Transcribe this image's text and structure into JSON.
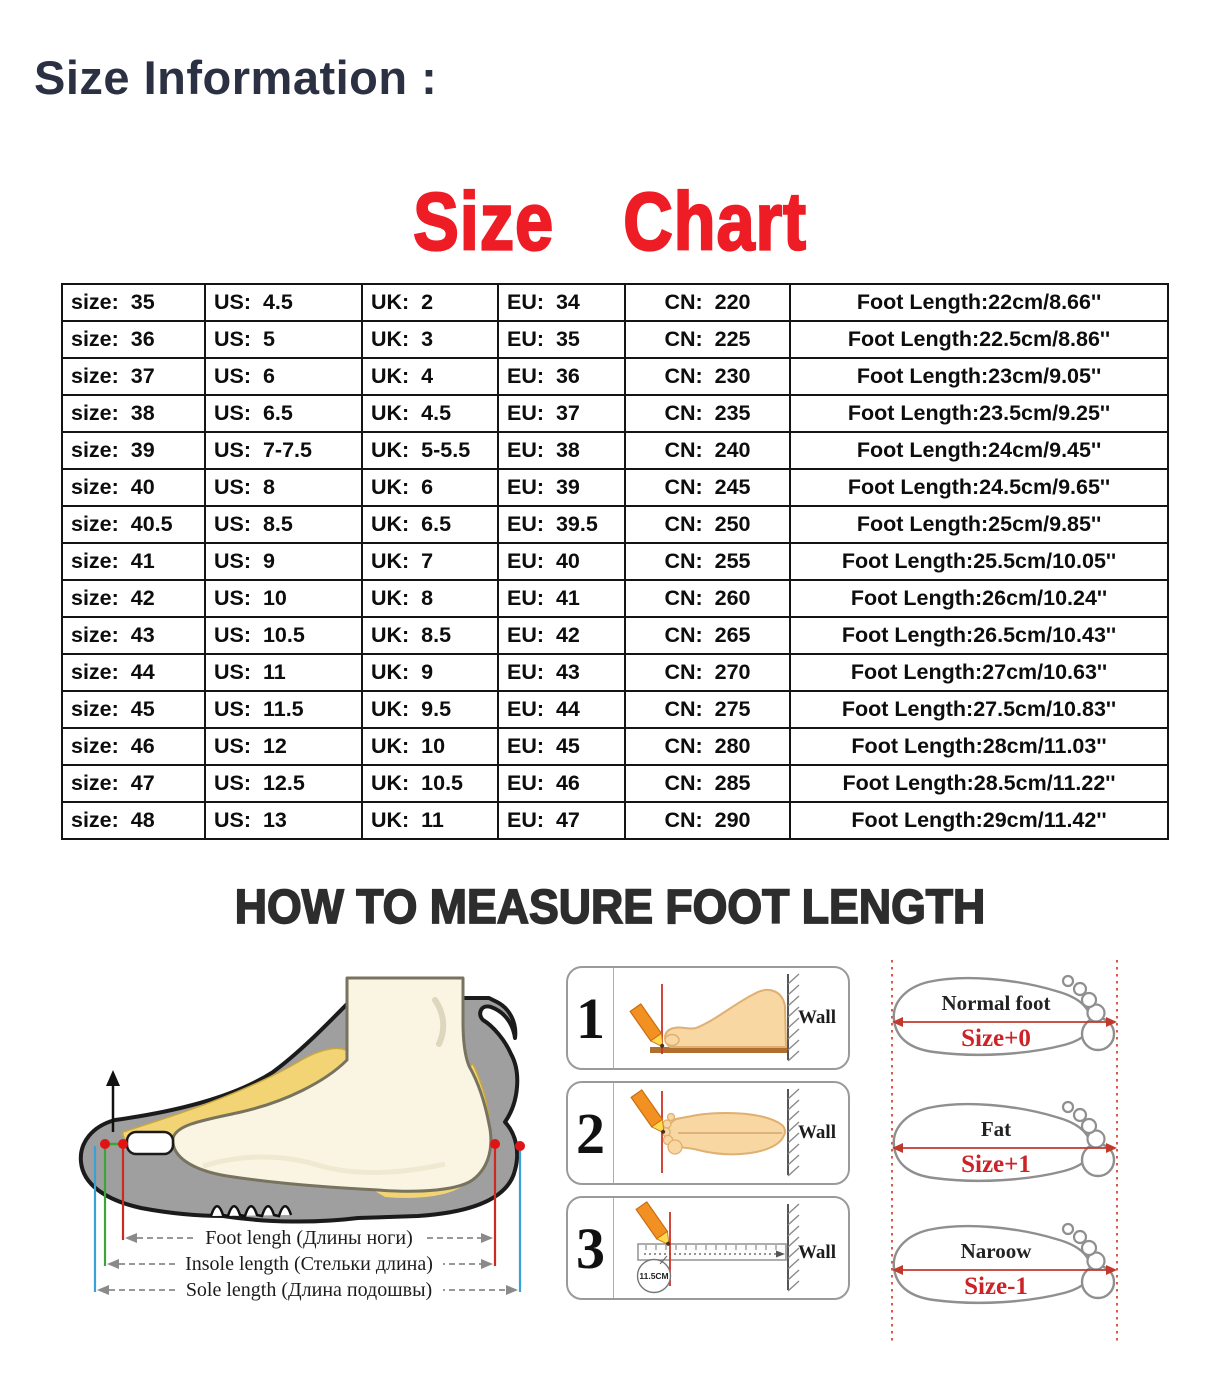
{
  "header": {
    "title": "Size Information :"
  },
  "size_chart": {
    "title": "Size Chart",
    "columns": [
      "size",
      "US",
      "UK",
      "EU",
      "CN",
      "Foot Length"
    ],
    "rows": [
      [
        "size:  35",
        "US:  4.5",
        "UK:  2",
        "EU:  34",
        "CN:  220",
        "Foot Length:22cm/8.66''"
      ],
      [
        "size:  36",
        "US:  5",
        "UK:  3",
        "EU:  35",
        "CN:  225",
        "Foot Length:22.5cm/8.86''"
      ],
      [
        "size:  37",
        "US:  6",
        "UK:  4",
        "EU:  36",
        "CN:  230",
        "Foot Length:23cm/9.05''"
      ],
      [
        "size:  38",
        "US:  6.5",
        "UK:  4.5",
        "EU:  37",
        "CN:  235",
        "Foot Length:23.5cm/9.25''"
      ],
      [
        "size:  39",
        "US:  7-7.5",
        "UK:  5-5.5",
        "EU:  38",
        "CN:  240",
        "Foot Length:24cm/9.45''"
      ],
      [
        "size:  40",
        "US:  8",
        "UK:  6",
        "EU:  39",
        "CN:  245",
        "Foot Length:24.5cm/9.65''"
      ],
      [
        "size:  40.5",
        "US:  8.5",
        "UK:  6.5",
        "EU:  39.5",
        "CN:  250",
        "Foot Length:25cm/9.85''"
      ],
      [
        "size:  41",
        "US:  9",
        "UK:  7",
        "EU:  40",
        "CN:  255",
        "Foot Length:25.5cm/10.05''"
      ],
      [
        "size:  42",
        "US:  10",
        "UK:  8",
        "EU:  41",
        "CN:  260",
        "Foot Length:26cm/10.24''"
      ],
      [
        "size:  43",
        "US:  10.5",
        "UK:  8.5",
        "EU:  42",
        "CN:  265",
        "Foot Length:26.5cm/10.43''"
      ],
      [
        "size:  44",
        "US:  11",
        "UK:  9",
        "EU:  43",
        "CN:  270",
        "Foot Length:27cm/10.63''"
      ],
      [
        "size:  45",
        "US:  11.5",
        "UK:  9.5",
        "EU:  44",
        "CN:  275",
        "Foot Length:27.5cm/10.83''"
      ],
      [
        "size:  46",
        "US:  12",
        "UK:  10",
        "EU:  45",
        "CN:  280",
        "Foot Length:28cm/11.03''"
      ],
      [
        "size:  47",
        "US:  12.5",
        "UK:  10.5",
        "EU:  46",
        "CN:  285",
        "Foot Length:28.5cm/11.22''"
      ],
      [
        "size:  48",
        "US:  13",
        "UK:  11",
        "EU:  47",
        "CN:  290",
        "Foot Length:29cm/11.42''"
      ]
    ]
  },
  "measure": {
    "heading": "HOW TO MEASURE FOOT LENGTH",
    "shoe_diagram": {
      "labels": [
        "Foot lengh (Длины ноги)",
        "Insole length (Стельки длина)",
        "Sole length (Длина подошвы)"
      ]
    },
    "steps": [
      {
        "number": "1",
        "wall_label": "Wall"
      },
      {
        "number": "2",
        "wall_label": "Wall"
      },
      {
        "number": "3",
        "wall_label": "Wall",
        "ruler_mark": "11.5CM"
      }
    ],
    "foot_types": [
      {
        "label": "Normal foot",
        "size_note": "Size+0"
      },
      {
        "label": "Fat",
        "size_note": "Size+1"
      },
      {
        "label": "Naroow",
        "size_note": "Size-1"
      }
    ]
  },
  "colors": {
    "title_navy": "#2b3142",
    "chart_red": "#ee1c25",
    "size_note_red": "#cc2328",
    "measure_black": "#2d2d2d"
  }
}
